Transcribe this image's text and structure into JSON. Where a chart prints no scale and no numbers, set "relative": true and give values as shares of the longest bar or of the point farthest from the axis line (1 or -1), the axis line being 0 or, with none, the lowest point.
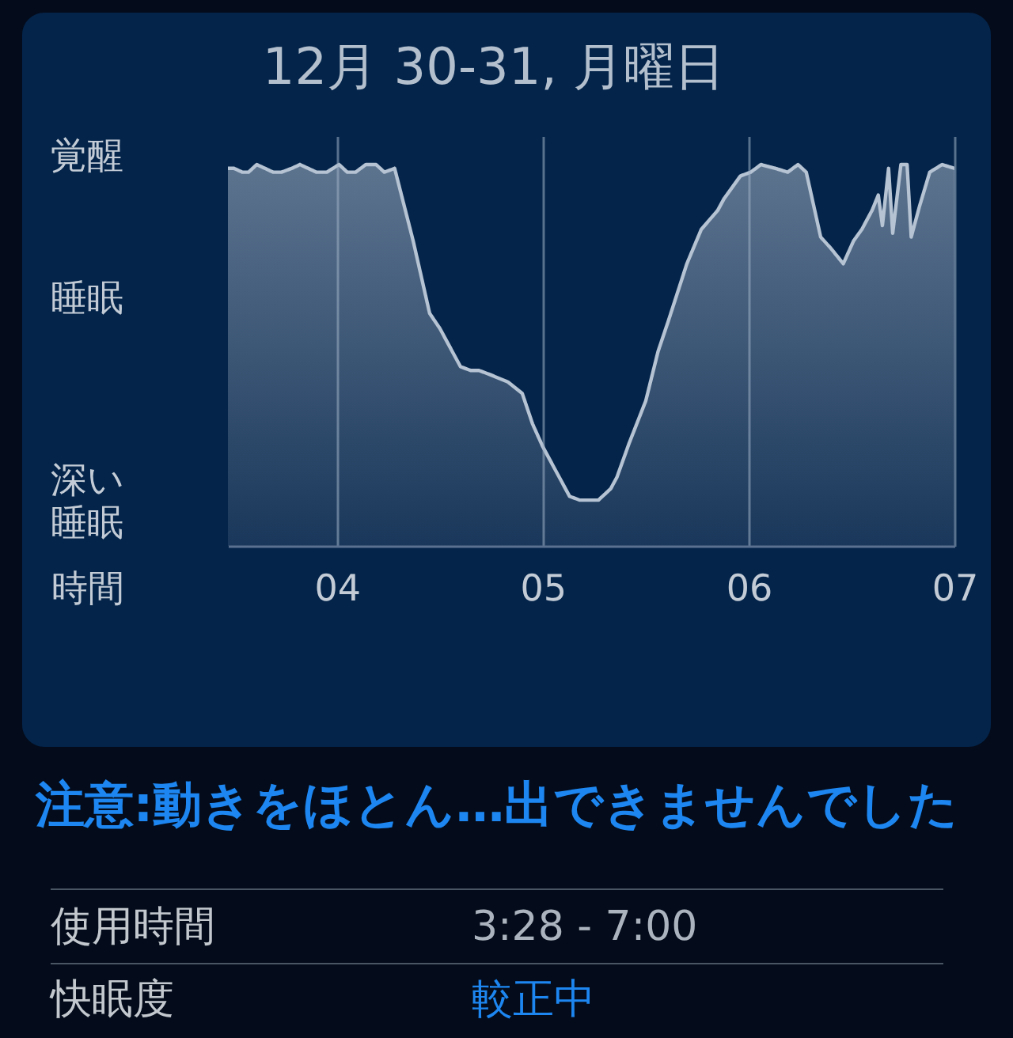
{
  "chart_data": {
    "type": "area",
    "title": "12月 30-31, 月曜日",
    "xlabel": "時間",
    "relative": true,
    "x": [
      3.47,
      3.5,
      3.54,
      3.57,
      3.61,
      3.65,
      3.69,
      3.73,
      3.78,
      3.82,
      3.86,
      3.9,
      3.95,
      4.01,
      4.05,
      4.09,
      4.14,
      4.19,
      4.23,
      4.28,
      4.37,
      4.45,
      4.5,
      4.56,
      4.6,
      4.65,
      4.69,
      4.74,
      4.83,
      4.9,
      4.95,
      5.0,
      5.08,
      5.13,
      5.18,
      5.22,
      5.27,
      5.33,
      5.36,
      5.42,
      5.5,
      5.56,
      5.61,
      5.7,
      5.77,
      5.85,
      5.88,
      5.96,
      6.01,
      6.06,
      6.13,
      6.19,
      6.24,
      6.28,
      6.35,
      6.4,
      6.46,
      6.51,
      6.55,
      6.58,
      6.6,
      6.63,
      6.65,
      6.68,
      6.7,
      6.74,
      6.77,
      6.79,
      6.83,
      6.88,
      6.94,
      7.0
    ],
    "series": [
      {
        "color": "#b5c3d3",
        "values": [
          0.99,
          0.99,
          0.98,
          0.98,
          1.0,
          0.99,
          0.98,
          0.98,
          0.99,
          1.0,
          0.99,
          0.98,
          0.98,
          1.0,
          0.98,
          0.98,
          1.0,
          1.0,
          0.98,
          0.99,
          0.8,
          0.61,
          0.57,
          0.51,
          0.47,
          0.46,
          0.46,
          0.45,
          0.43,
          0.4,
          0.32,
          0.26,
          0.18,
          0.13,
          0.12,
          0.12,
          0.12,
          0.15,
          0.18,
          0.27,
          0.38,
          0.51,
          0.59,
          0.74,
          0.83,
          0.88,
          0.91,
          0.97,
          0.98,
          1.0,
          0.99,
          0.98,
          1.0,
          0.98,
          0.81,
          0.78,
          0.74,
          0.8,
          0.83,
          0.86,
          0.88,
          0.92,
          0.84,
          0.99,
          0.82,
          1.0,
          1.0,
          0.81,
          0.89,
          0.98,
          1.0,
          0.99
        ]
      }
    ],
    "xlim": [
      3.47,
      7
    ],
    "xticks": [
      {
        "value": 4,
        "label": "04"
      },
      {
        "value": 5,
        "label": "05"
      },
      {
        "value": 6,
        "label": "06"
      },
      {
        "value": 7,
        "label": "07"
      }
    ],
    "grid": "x",
    "annotations": [
      "覚醒",
      "睡眠",
      "深い睡眠",
      "注意:動きをほとん…出できませんでした",
      "使用時間",
      "3:28 - 7:00",
      "快眠度",
      "較正中"
    ]
  }
}
